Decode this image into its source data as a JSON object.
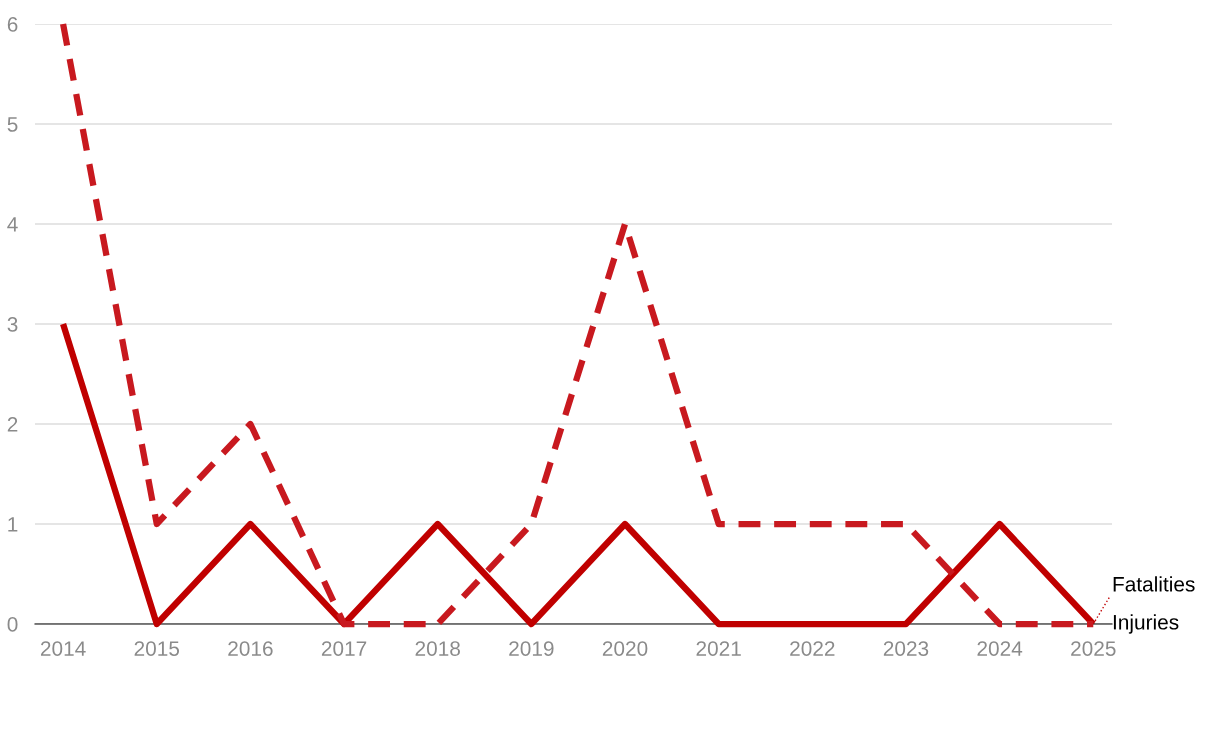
{
  "chart_data": {
    "type": "line",
    "categories": [
      "2014",
      "2015",
      "2016",
      "2017",
      "2018",
      "2019",
      "2020",
      "2021",
      "2022",
      "2023",
      "2024",
      "2025"
    ],
    "series": [
      {
        "name": "Fatalities",
        "color": "#c00000",
        "line_style": "solid",
        "values": [
          3,
          0,
          1,
          0,
          1,
          0,
          1,
          0,
          0,
          0,
          1,
          0
        ]
      },
      {
        "name": "Injuries",
        "color": "#c8191f",
        "line_style": "dashed",
        "values": [
          6,
          1,
          2,
          0,
          0,
          1,
          4,
          1,
          1,
          1,
          0,
          0
        ]
      }
    ],
    "ylim": [
      0,
      6
    ],
    "yticks": [
      0,
      1,
      2,
      3,
      4,
      5,
      6
    ],
    "grid": "y",
    "legend": false,
    "marker": "none"
  }
}
